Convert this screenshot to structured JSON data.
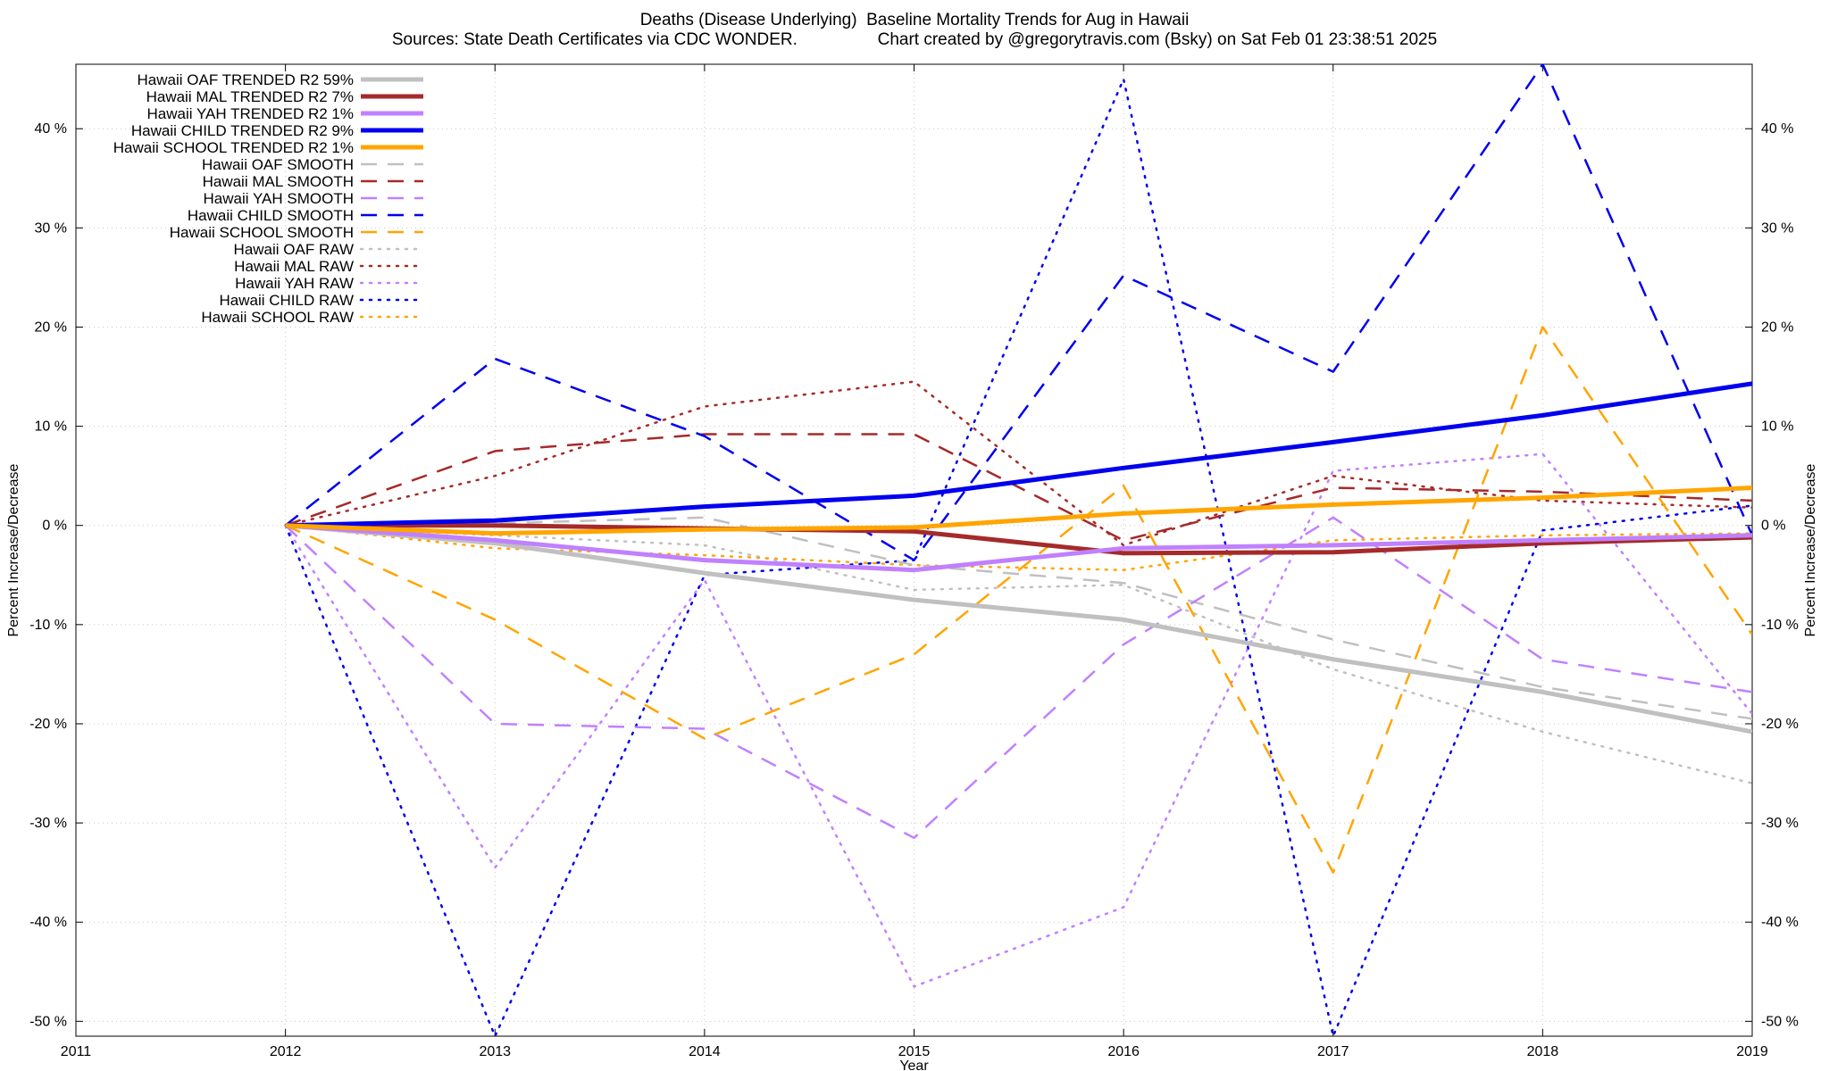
{
  "chart_data": {
    "type": "line",
    "title_line1": "Deaths (Disease Underlying)  Baseline Mortality Trends for Aug in Hawaii",
    "title_line2": "Sources: State Death Certificates via CDC WONDER.                 Chart created by @gregorytravis.com (Bsky) on Sat Feb 01 23:38:51 2025",
    "xlabel": "Year",
    "ylabel": "Percent Increase/Decrease",
    "y2label": "Percent Increase/Decrease",
    "xlim": [
      2011,
      2019
    ],
    "ylim": [
      -51.5,
      46.5
    ],
    "x_ticks": [
      2011,
      2012,
      2013,
      2014,
      2015,
      2016,
      2017,
      2018,
      2019
    ],
    "y_ticks": [
      40,
      30,
      20,
      10,
      0,
      -10,
      -20,
      -30,
      -40,
      -50
    ],
    "y_tick_labels": [
      "40 %",
      "30 %",
      "20 %",
      "10 %",
      "0 %",
      "-10 %",
      "-20 %",
      "-30 %",
      "-40 %",
      "-50 %"
    ],
    "grid": true,
    "legend_position": "top-left",
    "series": [
      {
        "name": "Hawaii OAF TRENDED R2  59%",
        "style": "solid",
        "color": "#c0c0c0",
        "width": 5,
        "x": [
          2012,
          2013,
          2014,
          2015,
          2016,
          2017,
          2018,
          2019
        ],
        "y": [
          0,
          -1.8,
          -4.8,
          -7.5,
          -9.5,
          -13.5,
          -16.8,
          -20.8
        ]
      },
      {
        "name": "Hawaii MAL TRENDED R2   7%",
        "style": "solid",
        "color": "#a52a2a",
        "width": 5,
        "x": [
          2012,
          2013,
          2014,
          2015,
          2016,
          2017,
          2018,
          2019
        ],
        "y": [
          0,
          0,
          -0.3,
          -0.6,
          -2.8,
          -2.7,
          -1.8,
          -1.2
        ]
      },
      {
        "name": "Hawaii YAH TRENDED R2   1%",
        "style": "solid",
        "color": "#c080ff",
        "width": 5,
        "x": [
          2012,
          2013,
          2014,
          2015,
          2016,
          2017,
          2018,
          2019
        ],
        "y": [
          0,
          -1.5,
          -3.5,
          -4.5,
          -2.3,
          -2.0,
          -1.5,
          -1.0
        ]
      },
      {
        "name": "Hawaii CHILD TRENDED R2   9%",
        "style": "solid",
        "color": "#0000ee",
        "width": 5,
        "x": [
          2012,
          2013,
          2014,
          2015,
          2016,
          2017,
          2018,
          2019
        ],
        "y": [
          0,
          0.5,
          1.9,
          3.0,
          5.8,
          8.4,
          11.1,
          14.3
        ]
      },
      {
        "name": "Hawaii SCHOOL TRENDED R2   1%",
        "style": "solid",
        "color": "#ffa500",
        "width": 5,
        "x": [
          2012,
          2013,
          2014,
          2015,
          2016,
          2017,
          2018,
          2019
        ],
        "y": [
          0,
          -0.8,
          -0.4,
          -0.2,
          1.2,
          2.1,
          2.8,
          3.8
        ]
      },
      {
        "name": "Hawaii OAF SMOOTH",
        "style": "dashed",
        "color": "#c0c0c0",
        "width": 2.5,
        "x": [
          2012,
          2013,
          2014,
          2015,
          2016,
          2017,
          2018,
          2019
        ],
        "y": [
          0,
          0.2,
          0.8,
          -4.0,
          -5.8,
          -11.5,
          -16.3,
          -19.5
        ]
      },
      {
        "name": "Hawaii MAL SMOOTH",
        "style": "dashed",
        "color": "#a52a2a",
        "width": 2.5,
        "x": [
          2012,
          2013,
          2014,
          2015,
          2016,
          2017,
          2018,
          2019
        ],
        "y": [
          0,
          7.5,
          9.2,
          9.2,
          -1.5,
          3.8,
          3.4,
          2.5
        ]
      },
      {
        "name": "Hawaii YAH SMOOTH",
        "style": "dashed",
        "color": "#c080ff",
        "width": 2.5,
        "x": [
          2012,
          2013,
          2014,
          2015,
          2016,
          2017,
          2018,
          2019
        ],
        "y": [
          0,
          -20.0,
          -20.5,
          -31.5,
          -12.0,
          0.8,
          -13.5,
          -16.8
        ]
      },
      {
        "name": "Hawaii CHILD SMOOTH",
        "style": "dashed",
        "color": "#0000ee",
        "width": 2.5,
        "x": [
          2012,
          2013,
          2014,
          2015,
          2016,
          2017,
          2018,
          2019
        ],
        "y": [
          0,
          16.8,
          9.0,
          -3.5,
          25.2,
          15.5,
          46.5,
          -1.0
        ]
      },
      {
        "name": "Hawaii SCHOOL SMOOTH",
        "style": "dashed",
        "color": "#ffa500",
        "width": 2.5,
        "x": [
          2012,
          2013,
          2014,
          2015,
          2016,
          2017,
          2018,
          2019
        ],
        "y": [
          0,
          -9.5,
          -21.5,
          -13.0,
          4.0,
          -35.0,
          20.0,
          -11.0
        ]
      },
      {
        "name": "Hawaii OAF RAW",
        "style": "dotted",
        "color": "#c0c0c0",
        "width": 2.5,
        "x": [
          2012,
          2013,
          2014,
          2015,
          2016,
          2017,
          2018,
          2019
        ],
        "y": [
          0,
          -1.0,
          -2.0,
          -6.5,
          -6.0,
          -14.5,
          -20.8,
          -26.0
        ]
      },
      {
        "name": "Hawaii MAL RAW",
        "style": "dotted",
        "color": "#a52a2a",
        "width": 2.5,
        "x": [
          2012,
          2013,
          2014,
          2015,
          2016,
          2017,
          2018,
          2019
        ],
        "y": [
          0,
          5.0,
          12.0,
          14.5,
          -2.0,
          5.0,
          2.5,
          1.8
        ]
      },
      {
        "name": "Hawaii YAH RAW",
        "style": "dotted",
        "color": "#c080ff",
        "width": 2.5,
        "x": [
          2012,
          2013,
          2014,
          2015,
          2016,
          2017,
          2018,
          2019
        ],
        "y": [
          0,
          -34.5,
          -5.5,
          -46.5,
          -38.5,
          5.5,
          7.2,
          -19.0
        ]
      },
      {
        "name": "Hawaii CHILD RAW",
        "style": "dotted",
        "color": "#0000ee",
        "width": 2.5,
        "x": [
          2012,
          2013,
          2014,
          2015,
          2016,
          2017,
          2018,
          2019
        ],
        "y": [
          0,
          -51.5,
          -5.0,
          -3.5,
          45.0,
          -51.5,
          -0.5,
          2.0
        ]
      },
      {
        "name": "Hawaii SCHOOL RAW",
        "style": "dotted",
        "color": "#ffa500",
        "width": 2.5,
        "x": [
          2012,
          2013,
          2014,
          2015,
          2016,
          2017,
          2018,
          2019
        ],
        "y": [
          0,
          -2.3,
          -3.0,
          -4.0,
          -4.5,
          -1.5,
          -1.0,
          -0.8
        ]
      }
    ]
  }
}
